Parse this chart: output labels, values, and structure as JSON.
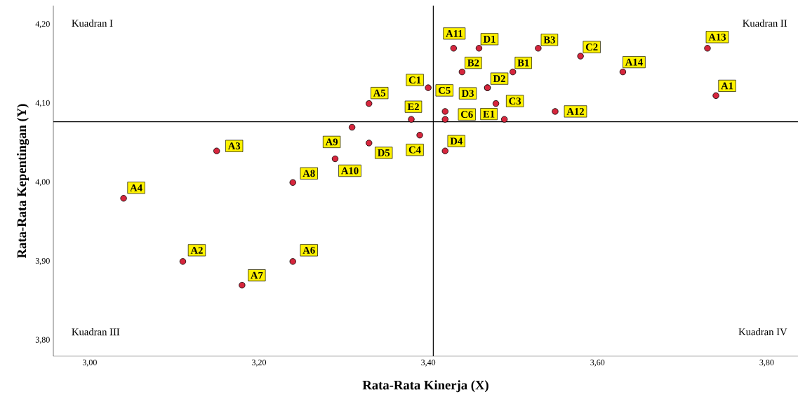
{
  "chart_data": {
    "type": "scatter",
    "xlabel": "Rata-Rata Kinerja (X)",
    "ylabel": "Rata-Rata Kepentingan (Y)",
    "x": [
      3.74,
      3.11,
      3.15,
      3.04,
      3.33,
      3.24,
      3.18,
      3.24,
      3.31,
      3.29,
      3.43,
      3.55,
      3.73,
      3.63,
      3.5,
      3.44,
      3.53,
      3.4,
      3.58,
      3.49,
      3.39,
      3.42,
      3.42,
      3.46,
      3.47,
      3.47,
      3.42,
      3.33,
      3.48,
      3.38
    ],
    "series": [
      {
        "color": "#d7263d",
        "values": [
          4.11,
          3.9,
          4.04,
          3.98,
          4.1,
          3.9,
          3.87,
          4.0,
          4.07,
          4.03,
          4.17,
          4.09,
          4.17,
          4.14,
          4.14,
          4.14,
          4.17,
          4.12,
          4.16,
          4.08,
          4.06,
          4.09,
          4.08,
          4.17,
          4.12,
          4.12,
          4.04,
          4.05,
          4.1,
          4.08
        ]
      }
    ],
    "xlim": [
      2.957,
      3.837
    ],
    "ylim": [
      3.78,
      4.224
    ],
    "xticks": [
      {
        "value": 3.0,
        "label": "3,00"
      },
      {
        "value": 3.2,
        "label": "3,20"
      },
      {
        "value": 3.4,
        "label": "3,40"
      },
      {
        "value": 3.6,
        "label": "3,60"
      },
      {
        "value": 3.8,
        "label": "3,80"
      }
    ],
    "yticks": [
      {
        "value": 3.8,
        "label": "3,80"
      },
      {
        "value": 3.9,
        "label": "3,90"
      },
      {
        "value": 4.0,
        "label": "4,00"
      },
      {
        "value": 4.1,
        "label": "4,10"
      },
      {
        "value": 4.2,
        "label": "4,20"
      }
    ],
    "ref_lines": [
      {
        "axis": "x",
        "value": 3.406
      },
      {
        "axis": "y",
        "value": 4.077
      }
    ],
    "grid": false,
    "marker": "circle",
    "annotations": [
      "Kuadran I",
      "Kuadran II",
      "Kuadran III",
      "Kuadran IV",
      {
        "text": "A1",
        "x": 3.74,
        "y": 4.11
      },
      {
        "text": "A2",
        "x": 3.11,
        "y": 3.9
      },
      {
        "text": "A3",
        "x": 3.15,
        "y": 4.04
      },
      {
        "text": "A4",
        "x": 3.04,
        "y": 3.98
      },
      {
        "text": "A5",
        "x": 3.33,
        "y": 4.1
      },
      {
        "text": "A6",
        "x": 3.24,
        "y": 3.9
      },
      {
        "text": "A7",
        "x": 3.18,
        "y": 3.87
      },
      {
        "text": "A8",
        "x": 3.24,
        "y": 4.0
      },
      {
        "text": "A9",
        "x": 3.31,
        "y": 4.07
      },
      {
        "text": "A10",
        "x": 3.29,
        "y": 4.03
      },
      {
        "text": "A11",
        "x": 3.43,
        "y": 4.17
      },
      {
        "text": "A12",
        "x": 3.55,
        "y": 4.09
      },
      {
        "text": "A13",
        "x": 3.73,
        "y": 4.17
      },
      {
        "text": "A14",
        "x": 3.63,
        "y": 4.14
      },
      {
        "text": "B1",
        "x": 3.5,
        "y": 4.14
      },
      {
        "text": "B2",
        "x": 3.44,
        "y": 4.14
      },
      {
        "text": "B3",
        "x": 3.53,
        "y": 4.17
      },
      {
        "text": "C1",
        "x": 3.4,
        "y": 4.12
      },
      {
        "text": "C2",
        "x": 3.58,
        "y": 4.16
      },
      {
        "text": "C3",
        "x": 3.49,
        "y": 4.08
      },
      {
        "text": "C4",
        "x": 3.39,
        "y": 4.06
      },
      {
        "text": "C5",
        "x": 3.42,
        "y": 4.09
      },
      {
        "text": "C6",
        "x": 3.42,
        "y": 4.08
      },
      {
        "text": "D1",
        "x": 3.46,
        "y": 4.17
      },
      {
        "text": "D2",
        "x": 3.47,
        "y": 4.12
      },
      {
        "text": "D3",
        "x": 3.47,
        "y": 4.12
      },
      {
        "text": "D4",
        "x": 3.42,
        "y": 4.04
      },
      {
        "text": "D5",
        "x": 3.33,
        "y": 4.05
      },
      {
        "text": "E1",
        "x": 3.48,
        "y": 4.1
      },
      {
        "text": "E2",
        "x": 3.38,
        "y": 4.08
      }
    ]
  }
}
